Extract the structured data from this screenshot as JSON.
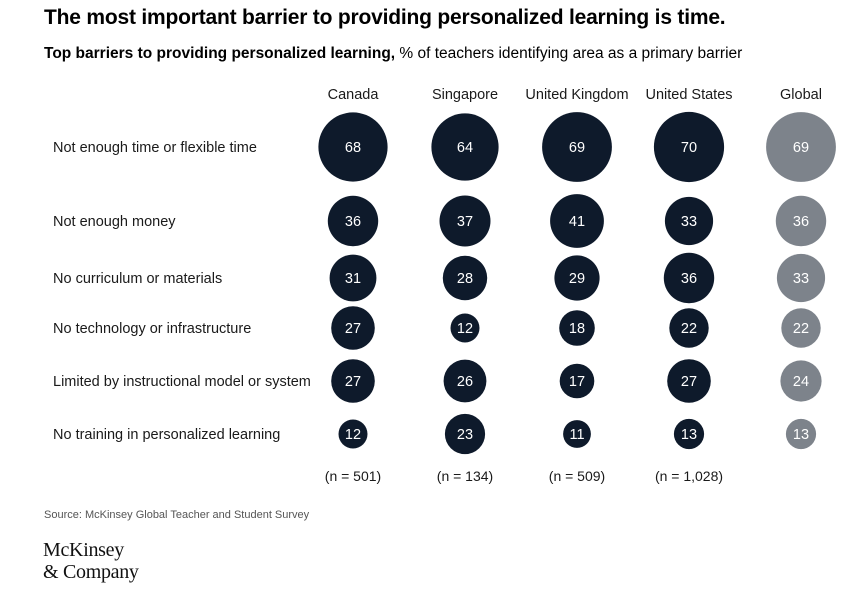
{
  "title": "The most important barrier to providing personalized learning is time.",
  "subtitle_bold": "Top barriers to providing personalized learning,",
  "subtitle_rest": " % of teachers identifying area as a primary barrier",
  "source": "Source: McKinsey Global Teacher and Student Survey",
  "logo": {
    "line1": "McKinsey",
    "line2": "& Company"
  },
  "colors": {
    "country": "#0e1a2b",
    "global": "#7d838b",
    "label_on_bubble": "#ffffff"
  },
  "chart_data": {
    "type": "bubble-table",
    "columns": [
      "Canada",
      "Singapore",
      "United Kingdom",
      "United States",
      "Global"
    ],
    "rows": [
      {
        "label": "Not enough time or flexible time",
        "values": [
          68,
          64,
          69,
          70,
          69
        ]
      },
      {
        "label": "Not enough money",
        "values": [
          36,
          37,
          41,
          33,
          36
        ]
      },
      {
        "label": "No curriculum or materials",
        "values": [
          31,
          28,
          29,
          36,
          33
        ]
      },
      {
        "label": "No technology or infrastructure",
        "values": [
          27,
          12,
          18,
          22,
          22
        ]
      },
      {
        "label": "Limited by instructional model or system",
        "values": [
          27,
          26,
          17,
          27,
          24
        ]
      },
      {
        "label": "No training in personalized learning",
        "values": [
          12,
          23,
          11,
          13,
          13
        ]
      }
    ],
    "sample_sizes": [
      "(n = 501)",
      "(n = 134)",
      "(n = 509)",
      "(n = 1,028)",
      ""
    ]
  }
}
